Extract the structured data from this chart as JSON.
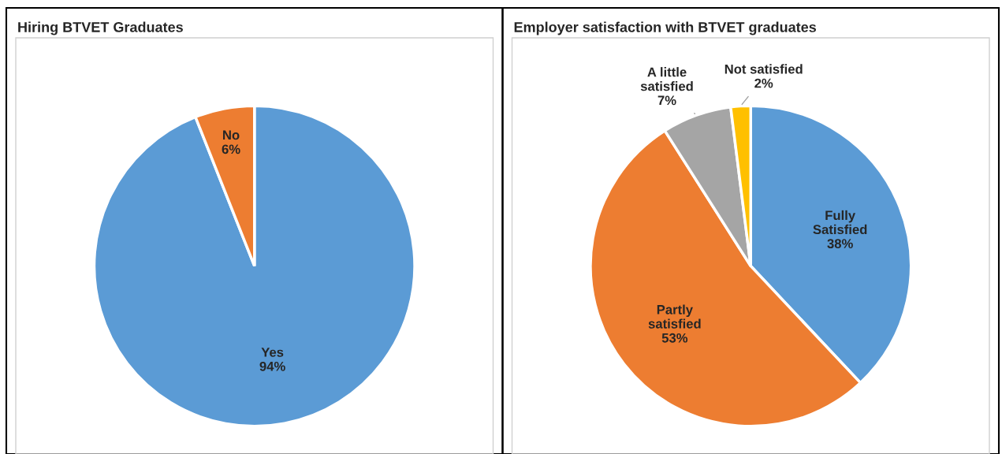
{
  "chart_data": [
    {
      "type": "pie",
      "title": "Hiring BTVET Graduates",
      "categories": [
        "Yes",
        "No"
      ],
      "values": [
        94,
        6
      ],
      "colors": [
        "#5b9bd5",
        "#ed7d31"
      ],
      "value_labels": [
        "94%",
        "6%"
      ]
    },
    {
      "type": "pie",
      "title": "Employer satisfaction with BTVET graduates",
      "categories": [
        "Fully\nSatisfied",
        "Partly\nsatisfied",
        "A little\nsatisfied",
        "Not satisfied"
      ],
      "values": [
        38,
        53,
        7,
        2
      ],
      "colors": [
        "#5b9bd5",
        "#ed7d31",
        "#a5a5a5",
        "#ffc000"
      ],
      "value_labels": [
        "38%",
        "53%",
        "7%",
        "2%"
      ]
    }
  ]
}
